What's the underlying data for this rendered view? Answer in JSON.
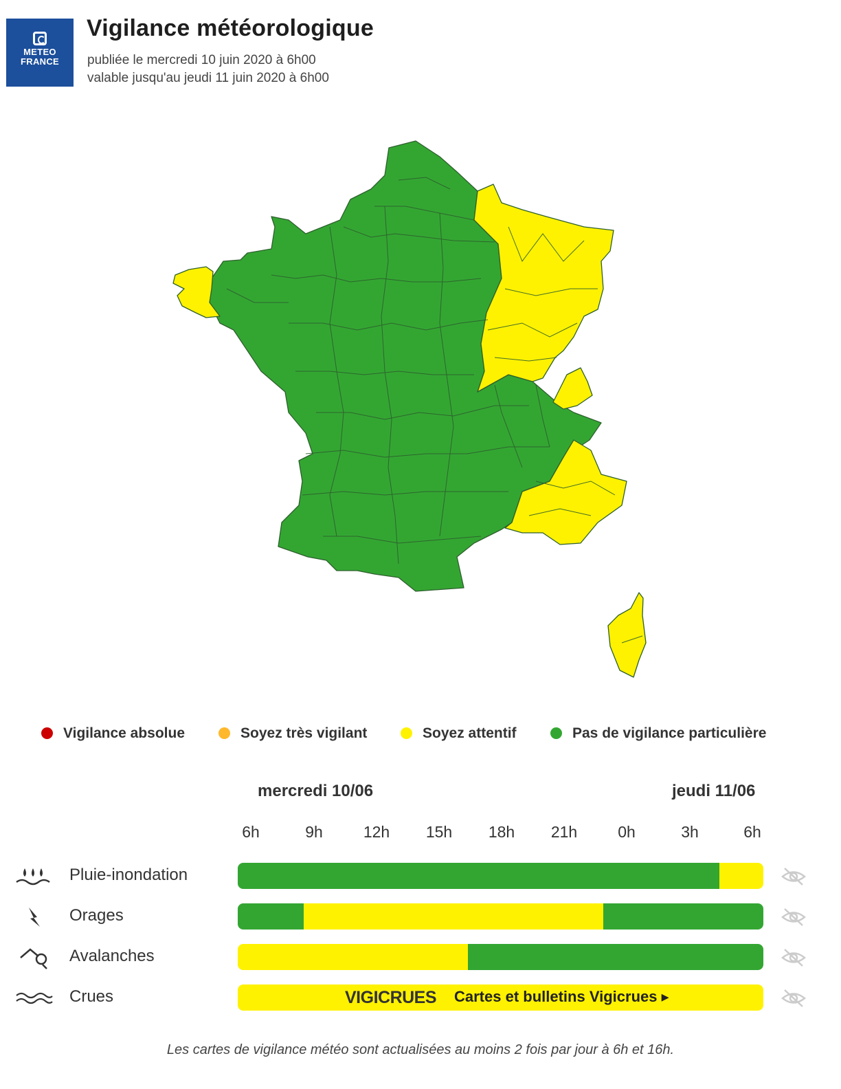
{
  "header": {
    "logo_line1": "METEO",
    "logo_line2": "FRANCE",
    "title": "Vigilance météorologique",
    "published": "publiée le mercredi 10 juin 2020 à 6h00",
    "valid_until": "valable jusqu'au jeudi 11 juin 2020 à 6h00"
  },
  "colors": {
    "green": "#33a632",
    "yellow": "#fff200",
    "orange": "#ffb82b",
    "red": "#cc0000",
    "border": "#2d5f2d",
    "logo_blue": "#1c4f9c"
  },
  "map": {
    "regions": [
      {
        "name": "Mainland green",
        "level": "green"
      },
      {
        "name": "Finistère",
        "level": "yellow"
      },
      {
        "name": "North-east",
        "level": "yellow"
      },
      {
        "name": "Savoie area",
        "level": "yellow"
      },
      {
        "name": "South-east",
        "level": "yellow"
      },
      {
        "name": "Corse",
        "level": "yellow"
      }
    ]
  },
  "legend": [
    {
      "label": "Vigilance absolue",
      "color": "#cc0000"
    },
    {
      "label": "Soyez très vigilant",
      "color": "#ffb82b"
    },
    {
      "label": "Soyez attentif",
      "color": "#fff200"
    },
    {
      "label": "Pas de vigilance particulière",
      "color": "#33a632"
    }
  ],
  "timeline": {
    "day1": "mercredi 10/06",
    "day2": "jeudi 11/06",
    "hours": [
      "6h",
      "9h",
      "12h",
      "15h",
      "18h",
      "21h",
      "0h",
      "3h",
      "6h"
    ],
    "rows": [
      {
        "label": "Pluie-inondation",
        "icon": "rain-flood-icon",
        "segments": [
          {
            "from": 0,
            "to": 22,
            "level": "green"
          },
          {
            "from": 22,
            "to": 24,
            "level": "yellow"
          }
        ]
      },
      {
        "label": "Orages",
        "icon": "lightning-icon",
        "segments": [
          {
            "from": 0,
            "to": 3,
            "level": "green"
          },
          {
            "from": 3,
            "to": 16.7,
            "level": "yellow"
          },
          {
            "from": 16.7,
            "to": 24,
            "level": "green"
          }
        ]
      },
      {
        "label": "Avalanches",
        "icon": "avalanche-icon",
        "segments": [
          {
            "from": 0,
            "to": 10.5,
            "level": "yellow"
          },
          {
            "from": 10.5,
            "to": 24,
            "level": "green"
          }
        ]
      },
      {
        "label": "Crues",
        "icon": "waves-icon",
        "segments": [
          {
            "from": 0,
            "to": 24,
            "level": "yellow"
          }
        ]
      }
    ],
    "vigicrues_logo": "VIGICRUES",
    "vigicrues_link": "Cartes et bulletins Vigicrues ▸"
  },
  "footer": "Les cartes de vigilance météo sont actualisées au moins 2 fois par jour à 6h et 16h."
}
